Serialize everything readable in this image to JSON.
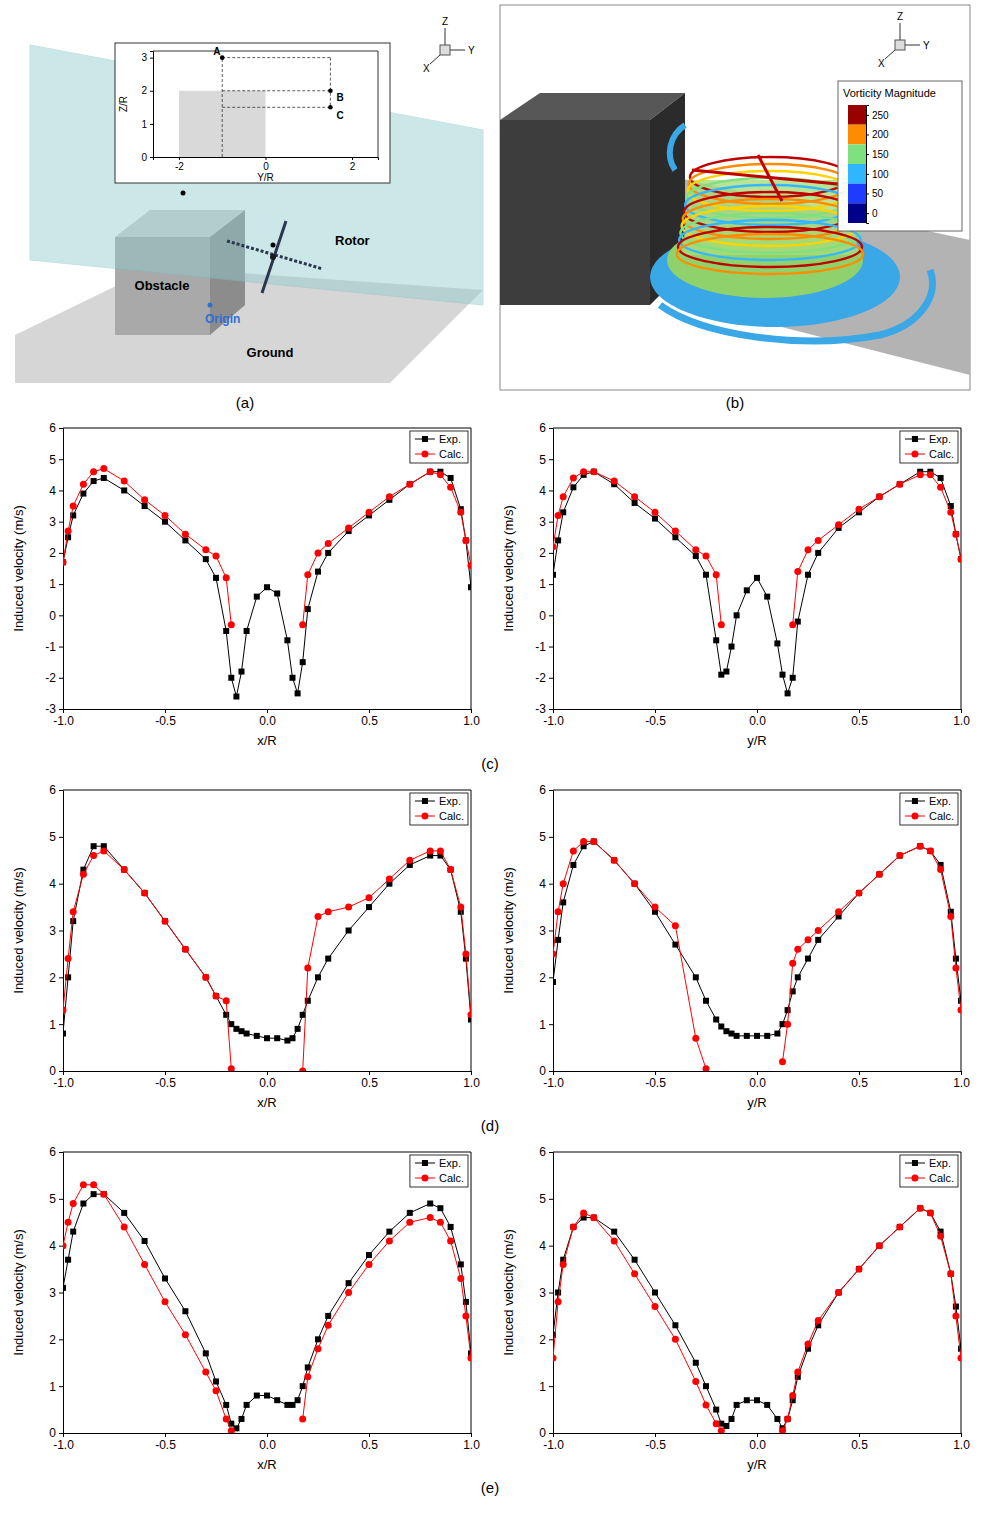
{
  "chart_data": [
    {
      "type": "scatter",
      "xlabel": "Y/R",
      "ylabel": "Z/R",
      "xlim": [
        -2.6,
        2.6
      ],
      "ylim": [
        0,
        3.2
      ],
      "xticks": [
        -2,
        0,
        2
      ],
      "yticks": [
        0,
        1,
        2,
        3
      ],
      "color": "#000000",
      "points": {
        "labels": [
          "A",
          "B",
          "C"
        ],
        "x": [
          -1,
          1.5,
          1.5
        ],
        "values": [
          3,
          2,
          1.5
        ]
      },
      "obstacle": {
        "x": [
          -2,
          0
        ],
        "y": [
          0,
          2
        ]
      }
    },
    {
      "type": "line",
      "xlabel": "x/R",
      "ylabel": "Induced velocity (m/s)",
      "xlim": [
        -1,
        1
      ],
      "ylim": [
        -3,
        6
      ],
      "xticks": [
        {
          "value": -1,
          "label": "-1.0"
        },
        -0.5,
        {
          "value": 0,
          "label": "0.0"
        },
        0.5,
        {
          "value": 1,
          "label": "1.0"
        }
      ],
      "yticks": [
        -3,
        -2,
        -1,
        0,
        1,
        2,
        3,
        4,
        5,
        6
      ],
      "grid": false,
      "legend": "top-right",
      "x": [
        -1,
        -0.975,
        -0.95,
        -0.9,
        -0.85,
        -0.8,
        -0.7,
        -0.6,
        -0.5,
        -0.4,
        -0.3,
        -0.25,
        -0.2,
        -0.175,
        -0.15,
        -0.125,
        -0.1,
        -0.05,
        0,
        0.05,
        0.1,
        0.125,
        0.15,
        0.175,
        0.2,
        0.25,
        0.3,
        0.4,
        0.5,
        0.6,
        0.7,
        0.8,
        0.85,
        0.9,
        0.95,
        0.975,
        1
      ],
      "series": [
        {
          "name": "Exp.",
          "color": "#000000",
          "marker": "square",
          "line_style": "solid",
          "values": [
            1.7,
            2.5,
            3.2,
            3.9,
            4.3,
            4.4,
            4.0,
            3.5,
            3.0,
            2.4,
            1.8,
            1.2,
            -0.5,
            -2.0,
            -2.6,
            -1.8,
            -0.5,
            0.6,
            0.9,
            0.7,
            -0.8,
            -2.0,
            -2.5,
            -1.5,
            0.2,
            1.4,
            2.0,
            2.7,
            3.2,
            3.7,
            4.2,
            4.6,
            4.6,
            4.4,
            3.4,
            2.4,
            0.9
          ]
        },
        {
          "name": "Calc.",
          "color": "#ff0000",
          "marker": "circle",
          "line_style": "solid",
          "values": [
            1.7,
            2.7,
            3.5,
            4.2,
            4.6,
            4.7,
            4.3,
            3.7,
            3.2,
            2.6,
            2.1,
            1.9,
            1.2,
            -0.3,
            null,
            null,
            null,
            null,
            null,
            null,
            null,
            null,
            null,
            -0.3,
            1.3,
            2.0,
            2.3,
            2.8,
            3.3,
            3.8,
            4.2,
            4.6,
            4.5,
            4.1,
            3.3,
            2.4,
            1.6
          ]
        }
      ]
    },
    {
      "type": "line",
      "xlabel": "y/R",
      "ylabel": "Induced velocity (m/s)",
      "xlim": [
        -1,
        1
      ],
      "ylim": [
        -3,
        6
      ],
      "xticks": [
        {
          "value": -1,
          "label": "-1.0"
        },
        -0.5,
        {
          "value": 0,
          "label": "0.0"
        },
        0.5,
        {
          "value": 1,
          "label": "1.0"
        }
      ],
      "yticks": [
        -3,
        -2,
        -1,
        0,
        1,
        2,
        3,
        4,
        5,
        6
      ],
      "grid": false,
      "legend": "top-right",
      "x": [
        -1,
        -0.975,
        -0.95,
        -0.9,
        -0.85,
        -0.8,
        -0.7,
        -0.6,
        -0.5,
        -0.4,
        -0.3,
        -0.25,
        -0.2,
        -0.175,
        -0.15,
        -0.125,
        -0.1,
        -0.05,
        0,
        0.05,
        0.1,
        0.125,
        0.15,
        0.175,
        0.2,
        0.25,
        0.3,
        0.4,
        0.5,
        0.6,
        0.7,
        0.8,
        0.85,
        0.9,
        0.95,
        0.975,
        1
      ],
      "series": [
        {
          "name": "Exp.",
          "color": "#000000",
          "marker": "square",
          "line_style": "solid",
          "values": [
            1.3,
            2.4,
            3.3,
            4.1,
            4.5,
            4.6,
            4.2,
            3.6,
            3.1,
            2.5,
            1.9,
            1.3,
            -0.8,
            -1.9,
            -1.8,
            -1.0,
            0.0,
            0.8,
            1.2,
            0.6,
            -0.9,
            -1.9,
            -2.5,
            -2.0,
            -0.2,
            1.3,
            2.0,
            2.8,
            3.3,
            3.8,
            4.2,
            4.6,
            4.6,
            4.4,
            3.5,
            2.6,
            1.8
          ]
        },
        {
          "name": "Calc.",
          "color": "#ff0000",
          "marker": "circle",
          "line_style": "solid",
          "values": [
            2.2,
            3.2,
            3.8,
            4.4,
            4.6,
            4.6,
            4.3,
            3.8,
            3.3,
            2.7,
            2.1,
            1.9,
            1.3,
            -0.3,
            null,
            null,
            null,
            null,
            null,
            null,
            null,
            null,
            null,
            -0.3,
            1.4,
            2.1,
            2.4,
            2.9,
            3.4,
            3.8,
            4.2,
            4.5,
            4.5,
            4.1,
            3.3,
            2.6,
            1.8
          ]
        }
      ]
    },
    {
      "type": "line",
      "xlabel": "x/R",
      "ylabel": "Induced velocity (m/s)",
      "xlim": [
        -1,
        1
      ],
      "ylim": [
        0,
        6
      ],
      "xticks": [
        {
          "value": -1,
          "label": "-1.0"
        },
        -0.5,
        {
          "value": 0,
          "label": "0.0"
        },
        0.5,
        {
          "value": 1,
          "label": "1.0"
        }
      ],
      "yticks": [
        0,
        1,
        2,
        3,
        4,
        5,
        6
      ],
      "grid": false,
      "legend": "top-right",
      "x": [
        -1,
        -0.975,
        -0.95,
        -0.9,
        -0.85,
        -0.8,
        -0.7,
        -0.6,
        -0.5,
        -0.4,
        -0.3,
        -0.25,
        -0.2,
        -0.175,
        -0.15,
        -0.125,
        -0.1,
        -0.05,
        0,
        0.05,
        0.1,
        0.125,
        0.15,
        0.175,
        0.2,
        0.25,
        0.3,
        0.4,
        0.5,
        0.6,
        0.7,
        0.8,
        0.85,
        0.9,
        0.95,
        0.975,
        1
      ],
      "series": [
        {
          "name": "Exp.",
          "color": "#000000",
          "marker": "square",
          "line_style": "solid",
          "values": [
            0.8,
            2.0,
            3.2,
            4.3,
            4.8,
            4.8,
            4.3,
            3.8,
            3.2,
            2.6,
            2.0,
            1.6,
            1.2,
            1.0,
            0.9,
            0.85,
            0.8,
            0.75,
            0.7,
            0.7,
            0.65,
            0.7,
            0.9,
            1.2,
            1.5,
            2.0,
            2.4,
            3.0,
            3.5,
            4.0,
            4.4,
            4.6,
            4.6,
            4.3,
            3.4,
            2.4,
            1.1
          ]
        },
        {
          "name": "Calc.",
          "color": "#ff0000",
          "marker": "circle",
          "line_style": "solid",
          "values": [
            1.3,
            2.4,
            3.4,
            4.2,
            4.6,
            4.7,
            4.3,
            3.8,
            3.2,
            2.6,
            2.0,
            1.6,
            1.5,
            0.05,
            null,
            null,
            null,
            null,
            null,
            null,
            null,
            null,
            null,
            0.0,
            2.2,
            3.3,
            3.4,
            3.5,
            3.7,
            4.1,
            4.5,
            4.7,
            4.7,
            4.3,
            3.5,
            2.5,
            1.2
          ]
        }
      ]
    },
    {
      "type": "line",
      "xlabel": "y/R",
      "ylabel": "Induced velocity (m/s)",
      "xlim": [
        -1,
        1
      ],
      "ylim": [
        0,
        6
      ],
      "xticks": [
        {
          "value": -1,
          "label": "-1.0"
        },
        -0.5,
        {
          "value": 0,
          "label": "0.0"
        },
        0.5,
        {
          "value": 1,
          "label": "1.0"
        }
      ],
      "yticks": [
        0,
        1,
        2,
        3,
        4,
        5,
        6
      ],
      "grid": false,
      "legend": "top-right",
      "x": [
        -1,
        -0.975,
        -0.95,
        -0.9,
        -0.85,
        -0.8,
        -0.7,
        -0.6,
        -0.5,
        -0.4,
        -0.3,
        -0.25,
        -0.2,
        -0.175,
        -0.15,
        -0.125,
        -0.1,
        -0.05,
        0,
        0.05,
        0.1,
        0.125,
        0.15,
        0.175,
        0.2,
        0.25,
        0.3,
        0.4,
        0.5,
        0.6,
        0.7,
        0.8,
        0.85,
        0.9,
        0.95,
        0.975,
        1
      ],
      "series": [
        {
          "name": "Exp.",
          "color": "#000000",
          "marker": "square",
          "line_style": "solid",
          "values": [
            1.9,
            2.8,
            3.6,
            4.4,
            4.8,
            4.9,
            4.5,
            4.0,
            3.4,
            2.7,
            2.0,
            1.5,
            1.1,
            0.95,
            0.85,
            0.8,
            0.75,
            0.75,
            0.75,
            0.75,
            0.8,
            1.0,
            1.3,
            1.7,
            2.0,
            2.4,
            2.8,
            3.3,
            3.8,
            4.2,
            4.6,
            4.8,
            4.7,
            4.4,
            3.4,
            2.4,
            1.5
          ]
        },
        {
          "name": "Calc.",
          "color": "#ff0000",
          "marker": "circle",
          "line_style": "solid",
          "values": [
            2.5,
            3.4,
            4.0,
            4.7,
            4.9,
            4.9,
            4.5,
            4.0,
            3.5,
            3.1,
            0.7,
            0.05,
            null,
            null,
            null,
            null,
            null,
            null,
            null,
            null,
            null,
            0.2,
            1.0,
            2.3,
            2.6,
            2.8,
            3.0,
            3.4,
            3.8,
            4.2,
            4.6,
            4.8,
            4.7,
            4.3,
            3.3,
            2.2,
            1.3
          ]
        }
      ]
    },
    {
      "type": "line",
      "xlabel": "x/R",
      "ylabel": "Induced velocity (m/s)",
      "xlim": [
        -1,
        1
      ],
      "ylim": [
        0,
        6
      ],
      "xticks": [
        {
          "value": -1,
          "label": "-1.0"
        },
        -0.5,
        {
          "value": 0,
          "label": "0.0"
        },
        0.5,
        {
          "value": 1,
          "label": "1.0"
        }
      ],
      "yticks": [
        0,
        1,
        2,
        3,
        4,
        5,
        6
      ],
      "grid": false,
      "legend": "top-right",
      "x": [
        -1,
        -0.975,
        -0.95,
        -0.9,
        -0.85,
        -0.8,
        -0.7,
        -0.6,
        -0.5,
        -0.4,
        -0.3,
        -0.25,
        -0.2,
        -0.175,
        -0.15,
        -0.125,
        -0.1,
        -0.05,
        0,
        0.05,
        0.1,
        0.125,
        0.15,
        0.175,
        0.2,
        0.25,
        0.3,
        0.4,
        0.5,
        0.6,
        0.7,
        0.8,
        0.85,
        0.9,
        0.95,
        0.975,
        1
      ],
      "series": [
        {
          "name": "Exp.",
          "color": "#000000",
          "marker": "square",
          "line_style": "solid",
          "values": [
            3.1,
            3.7,
            4.3,
            4.9,
            5.1,
            5.1,
            4.7,
            4.1,
            3.3,
            2.6,
            1.7,
            1.1,
            0.6,
            0.2,
            0.1,
            0.3,
            0.6,
            0.8,
            0.8,
            0.7,
            0.6,
            0.6,
            0.7,
            1.0,
            1.4,
            2.0,
            2.5,
            3.2,
            3.8,
            4.3,
            4.7,
            4.9,
            4.8,
            4.4,
            3.6,
            2.8,
            1.7
          ]
        },
        {
          "name": "Calc.",
          "color": "#ff0000",
          "marker": "circle",
          "line_style": "solid",
          "values": [
            4.0,
            4.5,
            4.9,
            5.3,
            5.3,
            5.1,
            4.4,
            3.6,
            2.8,
            2.1,
            1.3,
            0.9,
            0.3,
            0.05,
            null,
            null,
            null,
            null,
            null,
            null,
            null,
            null,
            null,
            0.3,
            1.2,
            1.8,
            2.3,
            3.0,
            3.6,
            4.1,
            4.5,
            4.6,
            4.5,
            4.1,
            3.3,
            2.5,
            1.6
          ]
        }
      ]
    },
    {
      "type": "line",
      "xlabel": "y/R",
      "ylabel": "Induced velocity (m/s)",
      "xlim": [
        -1,
        1
      ],
      "ylim": [
        0,
        6
      ],
      "xticks": [
        {
          "value": -1,
          "label": "-1.0"
        },
        -0.5,
        {
          "value": 0,
          "label": "0.0"
        },
        0.5,
        {
          "value": 1,
          "label": "1.0"
        }
      ],
      "yticks": [
        0,
        1,
        2,
        3,
        4,
        5,
        6
      ],
      "grid": false,
      "legend": "top-right",
      "x": [
        -1,
        -0.975,
        -0.95,
        -0.9,
        -0.85,
        -0.8,
        -0.7,
        -0.6,
        -0.5,
        -0.4,
        -0.3,
        -0.25,
        -0.2,
        -0.175,
        -0.15,
        -0.125,
        -0.1,
        -0.05,
        0,
        0.05,
        0.1,
        0.125,
        0.15,
        0.175,
        0.2,
        0.25,
        0.3,
        0.4,
        0.5,
        0.6,
        0.7,
        0.8,
        0.85,
        0.9,
        0.95,
        0.975,
        1
      ],
      "series": [
        {
          "name": "Exp.",
          "color": "#000000",
          "marker": "square",
          "line_style": "solid",
          "values": [
            2.1,
            3.0,
            3.7,
            4.4,
            4.6,
            4.6,
            4.3,
            3.7,
            3.0,
            2.3,
            1.5,
            1.0,
            0.5,
            0.2,
            0.15,
            0.3,
            0.6,
            0.7,
            0.7,
            0.6,
            0.3,
            0.1,
            0.3,
            0.7,
            1.2,
            1.8,
            2.3,
            3.0,
            3.5,
            4.0,
            4.4,
            4.8,
            4.7,
            4.3,
            3.4,
            2.7,
            1.8
          ]
        },
        {
          "name": "Calc.",
          "color": "#ff0000",
          "marker": "circle",
          "line_style": "solid",
          "values": [
            1.6,
            2.8,
            3.6,
            4.4,
            4.7,
            4.6,
            4.1,
            3.4,
            2.7,
            2.0,
            1.1,
            0.6,
            0.2,
            0.05,
            null,
            null,
            null,
            null,
            null,
            null,
            null,
            0.05,
            0.3,
            0.8,
            1.3,
            1.9,
            2.4,
            3.0,
            3.5,
            4.0,
            4.4,
            4.8,
            4.7,
            4.2,
            3.4,
            2.5,
            1.6
          ]
        }
      ]
    }
  ],
  "schematic": {
    "labels": {
      "obstacle": "Obstacle",
      "rotor": "Rotor",
      "origin": "Origin",
      "ground": "Ground"
    },
    "triad": [
      "X",
      "Y",
      "Z"
    ]
  },
  "render": {
    "triad": [
      "X",
      "Y",
      "Z"
    ],
    "colorbar": {
      "title": "Vorticity Magnitude",
      "range": [
        -25,
        275
      ],
      "ticks": [
        250,
        200,
        150,
        100,
        50,
        0
      ],
      "colors": [
        "#9b0000",
        "#ff8c00",
        "#7fe07f",
        "#2fb6ff",
        "#1e3cff",
        "#00008b"
      ]
    }
  },
  "panel_labels": [
    "(a)",
    "(b)",
    "(c)",
    "(d)",
    "(e)"
  ]
}
